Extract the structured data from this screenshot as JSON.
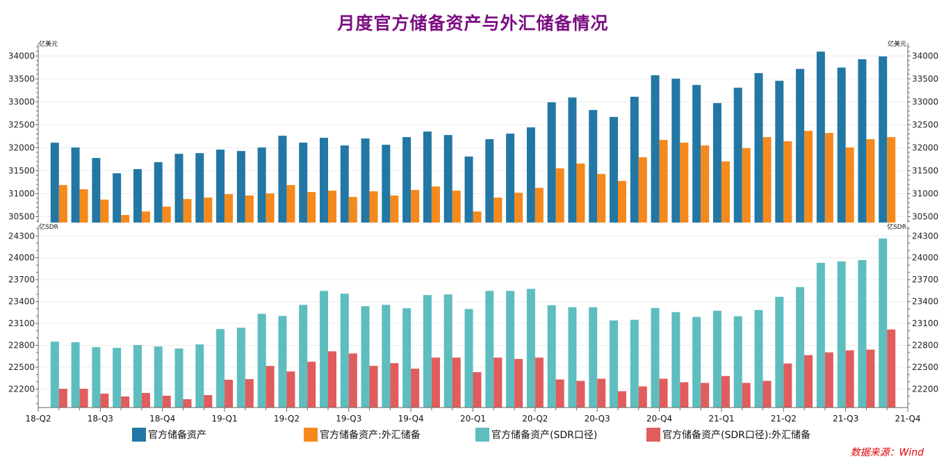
{
  "chart_data": [
    {
      "type": "bar",
      "title": "月度官方储备资产与外汇储备情况",
      "panel": "top",
      "unit_left": "亿美元",
      "unit_right": "亿美元",
      "ylim": [
        30370,
        34280
      ],
      "yticks": [
        30500,
        31000,
        31500,
        32000,
        32500,
        33000,
        33500,
        34000
      ],
      "grid": true,
      "series": [
        {
          "name": "官方储备资产",
          "color": "#2277A4",
          "values": [
            32110,
            32005,
            31777,
            31444,
            31535,
            31686,
            31868,
            31883,
            31959,
            31929,
            32005,
            32262,
            32111,
            32217,
            32050,
            32202,
            32065,
            32232,
            32353,
            32277,
            31808,
            32187,
            32308,
            32444,
            32990,
            33095,
            32823,
            32671,
            33111,
            33580,
            33505,
            33368,
            32974,
            33308,
            33626,
            33459,
            33717,
            34095,
            33747,
            33929,
            33990
          ]
        },
        {
          "name": "官方储备资产:外汇储备",
          "color": "#F5891C",
          "values": [
            31187,
            31095,
            30870,
            30535,
            30610,
            30717,
            30883,
            30914,
            30989,
            30959,
            31005,
            31187,
            31035,
            31065,
            30929,
            31050,
            30959,
            31080,
            31156,
            31065,
            30610,
            30914,
            31020,
            31126,
            31550,
            31656,
            31429,
            31277,
            31792,
            32171,
            32111,
            32050,
            31702,
            31990,
            32232,
            32141,
            32368,
            32323,
            32005,
            32187,
            32232
          ]
        }
      ]
    },
    {
      "type": "bar",
      "panel": "bottom",
      "unit_left": "亿SDR",
      "unit_right": "亿SDR",
      "ylim": [
        21946,
        24436
      ],
      "yticks": [
        22200,
        22500,
        22800,
        23100,
        23400,
        23700,
        24000,
        24300
      ],
      "grid": true,
      "series": [
        {
          "name": "官方储备资产(SDR口径)",
          "color": "#5EBDBF",
          "values": [
            22850,
            22841,
            22774,
            22765,
            22803,
            22784,
            22755,
            22812,
            23022,
            23041,
            23232,
            23203,
            23355,
            23546,
            23508,
            23336,
            23355,
            23308,
            23489,
            23498,
            23298,
            23546,
            23546,
            23574,
            23350,
            23322,
            23322,
            23141,
            23150,
            23312,
            23255,
            23189,
            23274,
            23198,
            23284,
            23465,
            23598,
            23931,
            23950,
            23969,
            24265
          ]
        },
        {
          "name": "官方储备资产(SDR口径):外汇储备",
          "color": "#E05C5D",
          "values": [
            22203,
            22203,
            22136,
            22098,
            22146,
            22108,
            22060,
            22117,
            22327,
            22336,
            22517,
            22441,
            22574,
            22717,
            22688,
            22517,
            22555,
            22479,
            22631,
            22631,
            22431,
            22631,
            22612,
            22631,
            22331,
            22312,
            22341,
            22170,
            22236,
            22341,
            22293,
            22284,
            22379,
            22284,
            22312,
            22550,
            22665,
            22703,
            22731,
            22741,
            23017
          ]
        }
      ]
    }
  ],
  "x_axis": {
    "tick_labels": [
      "18-Q2",
      "18-Q3",
      "18-Q4",
      "19-Q1",
      "19-Q2",
      "19-Q3",
      "19-Q4",
      "20-Q1",
      "20-Q2",
      "20-Q3",
      "20-Q4",
      "21-Q1",
      "21-Q2",
      "21-Q3",
      "21-Q4"
    ],
    "months_per_tick": 3,
    "domain_months": 42
  },
  "title": "月度官方储备资产与外汇储备情况",
  "legend": {
    "position": "bottom",
    "items": [
      {
        "label": "官方储备资产",
        "color": "#2277A4"
      },
      {
        "label": "官方储备资产:外汇储备",
        "color": "#F5891C"
      },
      {
        "label": "官方储备资产(SDR口径)",
        "color": "#5EBDBF"
      },
      {
        "label": "官方储备资产(SDR口径):外汇储备",
        "color": "#E05C5D"
      }
    ]
  },
  "source": "数据来源：Wind"
}
